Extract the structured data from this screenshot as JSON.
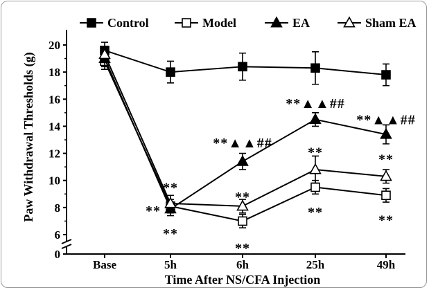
{
  "chart_data": {
    "type": "line",
    "categories": [
      "Base",
      "5h",
      "6h",
      "25h",
      "49h"
    ],
    "xlabel": "Time After NS/CFA Injection",
    "ylabel": "Paw Withdrawal Thresholds (g)",
    "ylim": [
      0,
      20
    ],
    "yticks": [
      0,
      6,
      8,
      10,
      12,
      14,
      16,
      18,
      20
    ],
    "axis_break": [
      0,
      6
    ],
    "grid": false,
    "legend_position": "top",
    "series": [
      {
        "name": "Control",
        "marker": "filled-square",
        "values": [
          19.6,
          18.0,
          18.4,
          18.3,
          17.8
        ],
        "errors": [
          0.6,
          0.8,
          1.0,
          1.2,
          0.8
        ]
      },
      {
        "name": "Model",
        "marker": "open-square",
        "values": [
          18.8,
          8.1,
          7.0,
          9.5,
          8.9
        ],
        "errors": [
          0.6,
          0.5,
          0.5,
          0.5,
          0.5
        ]
      },
      {
        "name": "EA",
        "marker": "filled-triangle",
        "values": [
          19.0,
          7.9,
          11.4,
          14.5,
          13.4
        ],
        "errors": [
          0.6,
          0.5,
          0.6,
          0.5,
          0.7
        ]
      },
      {
        "name": "Sham EA",
        "marker": "open-triangle",
        "values": [
          19.3,
          8.3,
          8.1,
          10.8,
          10.3
        ],
        "errors": [
          0.6,
          0.6,
          0.5,
          1.0,
          0.5
        ]
      }
    ],
    "annotations": [
      {
        "text": "**",
        "category": "5h",
        "y": 9.6,
        "pos": "above"
      },
      {
        "text": "**",
        "category": "5h",
        "y": 7.9,
        "pos": "left"
      },
      {
        "text": "**",
        "category": "5h",
        "y": 6.2,
        "pos": "below"
      },
      {
        "text": "**▲▲##",
        "category": "6h",
        "y": 12.9,
        "pos": "above"
      },
      {
        "text": "**",
        "category": "6h",
        "y": 8.9,
        "pos": "above"
      },
      {
        "text": "**",
        "category": "6h",
        "y": 5.6,
        "pos": "below"
      },
      {
        "text": "**▲▲##",
        "category": "25h",
        "y": 15.8,
        "pos": "above"
      },
      {
        "text": "**",
        "category": "25h",
        "y": 12.2,
        "pos": "above"
      },
      {
        "text": "**",
        "category": "25h",
        "y": 7.8,
        "pos": "below"
      },
      {
        "text": "**▲▲##",
        "category": "49h",
        "y": 14.6,
        "pos": "above"
      },
      {
        "text": "**",
        "category": "49h",
        "y": 11.7,
        "pos": "above"
      },
      {
        "text": "**",
        "category": "49h",
        "y": 7.2,
        "pos": "below"
      }
    ]
  }
}
